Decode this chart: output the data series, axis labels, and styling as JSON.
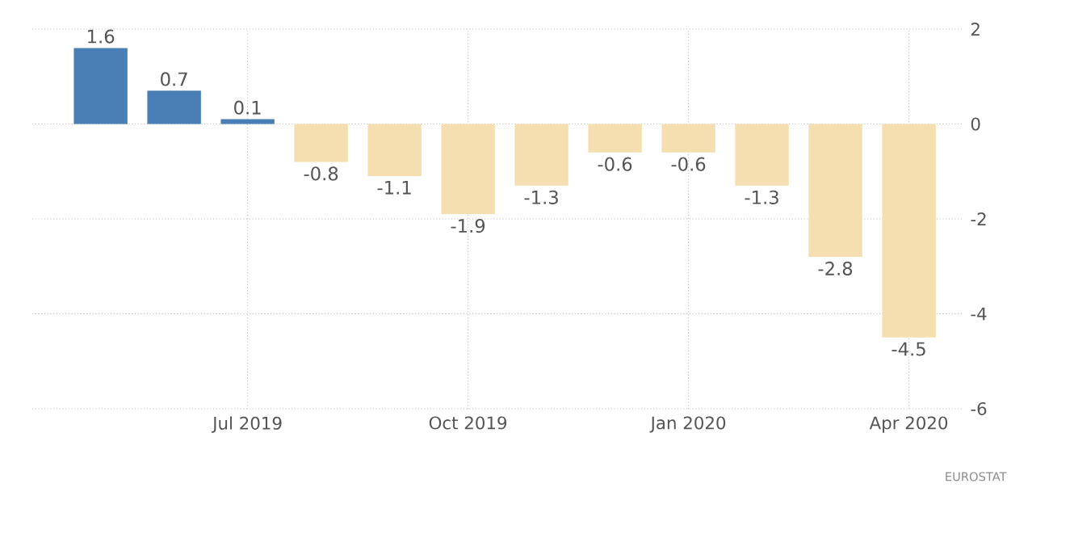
{
  "chart_data": {
    "type": "bar",
    "categories": [
      null,
      null,
      "Jul 2019",
      null,
      null,
      "Oct 2019",
      null,
      null,
      "Jan 2020",
      null,
      null,
      "Apr 2020"
    ],
    "values": [
      1.6,
      0.7,
      0.1,
      -0.8,
      -1.1,
      -1.9,
      -1.3,
      -0.6,
      -0.6,
      -1.3,
      -2.8,
      -4.5
    ],
    "colors": [
      "#4a7fb5",
      "#4a7fb5",
      "#4a7fb5",
      "#f5dfb0",
      "#f5dfb0",
      "#f5dfb0",
      "#f5dfb0",
      "#f5dfb0",
      "#f5dfb0",
      "#f5dfb0",
      "#f5dfb0",
      "#f5dfb0"
    ],
    "ylim": [
      -6,
      2
    ],
    "yticks": [
      -6,
      -4,
      -2,
      0,
      2
    ],
    "grid": true,
    "data_labels": true,
    "annotations": [
      "EUROSTAT"
    ]
  }
}
